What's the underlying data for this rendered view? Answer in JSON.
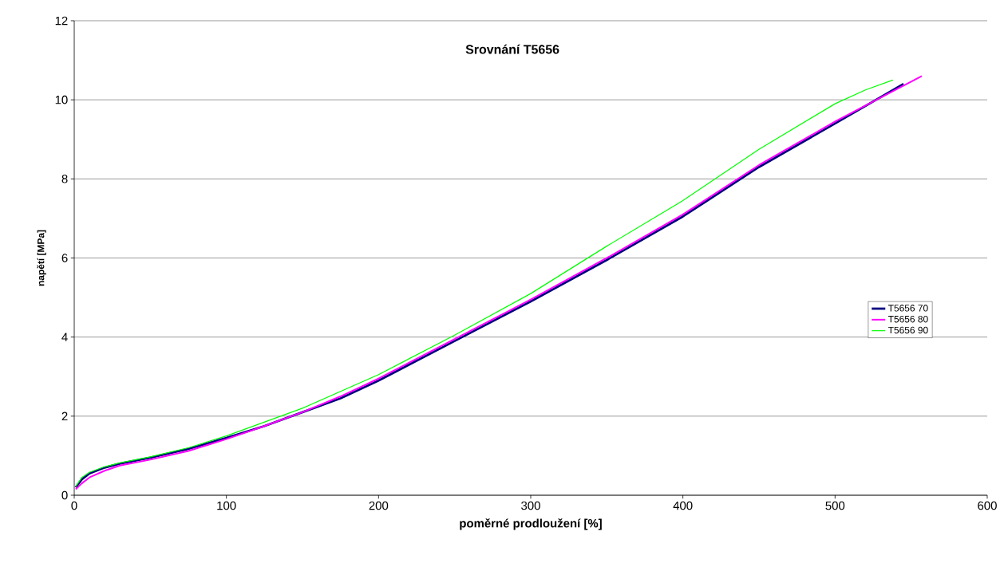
{
  "chart_data": {
    "type": "line",
    "title": "Srovnání T5656",
    "xlabel": "poměrné prodloužení [%]",
    "ylabel": "napětí [MPa]",
    "xlim": [
      0,
      600
    ],
    "xticks": [
      0,
      100,
      200,
      300,
      400,
      500,
      600
    ],
    "ylim": [
      0,
      12
    ],
    "yticks": [
      0,
      2,
      4,
      6,
      8,
      10,
      12
    ],
    "grid": "y",
    "legend": "right",
    "marker": "none",
    "line_style": "solid",
    "series": [
      {
        "name": "T5656 70",
        "color": "#000080",
        "x": [
          1,
          5,
          10,
          20,
          30,
          50,
          75,
          100,
          125,
          150,
          175,
          200,
          250,
          300,
          350,
          400,
          450,
          500,
          545
        ],
        "values": [
          0.2,
          0.4,
          0.55,
          0.7,
          0.8,
          0.95,
          1.17,
          1.45,
          1.75,
          2.1,
          2.45,
          2.9,
          3.9,
          4.9,
          5.95,
          7.05,
          8.3,
          9.4,
          10.4
        ]
      },
      {
        "name": "T5656 80",
        "color": "#ff00ff",
        "x": [
          1,
          5,
          10,
          20,
          30,
          50,
          75,
          100,
          125,
          150,
          175,
          200,
          250,
          300,
          350,
          400,
          450,
          500,
          557
        ],
        "values": [
          0.15,
          0.3,
          0.45,
          0.62,
          0.75,
          0.9,
          1.12,
          1.42,
          1.75,
          2.1,
          2.5,
          2.95,
          3.95,
          4.95,
          6.0,
          7.1,
          8.35,
          9.45,
          10.6
        ]
      },
      {
        "name": "T5656 90",
        "color": "#00ff00",
        "x": [
          1,
          5,
          10,
          20,
          30,
          50,
          75,
          100,
          150,
          200,
          250,
          300,
          350,
          400,
          450,
          500,
          520,
          538
        ],
        "values": [
          0.22,
          0.45,
          0.58,
          0.72,
          0.82,
          0.97,
          1.2,
          1.5,
          2.2,
          3.05,
          4.05,
          5.1,
          6.3,
          7.45,
          8.75,
          9.9,
          10.25,
          10.5
        ]
      }
    ]
  }
}
